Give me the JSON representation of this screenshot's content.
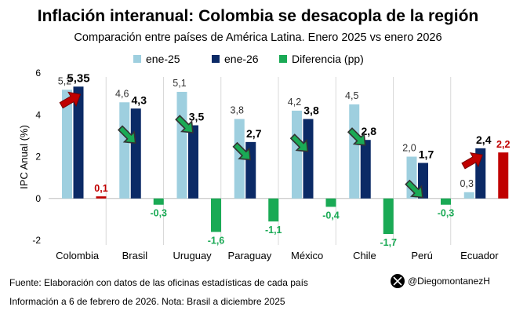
{
  "chart_data": {
    "type": "bar",
    "title": "Inflación interanual: Colombia se desacopla de la región",
    "subtitle": "Comparación entre países de América Latina. Enero 2025 vs enero 2026",
    "ylabel": "IPC Anual (%)",
    "xlabel": "",
    "ylim": [
      -2,
      6
    ],
    "yticks": [
      "-2",
      "0",
      "2",
      "4",
      "6"
    ],
    "ytick_values": [
      -2,
      0,
      2,
      4,
      6
    ],
    "categories": [
      "Colombia",
      "Brasil",
      "Uruguay",
      "Paraguay",
      "México",
      "Chile",
      "Perú",
      "Ecuador"
    ],
    "series": [
      {
        "name": "ene-25",
        "color": "#9ecfdf",
        "values": [
          5.2,
          4.6,
          5.1,
          3.8,
          4.2,
          4.5,
          2.0,
          0.3
        ],
        "labels": [
          "5,2",
          "4,6",
          "5,1",
          "3,8",
          "4,2",
          "4,5",
          "2,0",
          "0,3"
        ]
      },
      {
        "name": "ene-26",
        "color": "#0b2a66",
        "values": [
          5.35,
          4.3,
          3.5,
          2.7,
          3.8,
          2.8,
          1.7,
          2.4
        ],
        "labels": [
          "5,35",
          "4,3",
          "3,5",
          "2,7",
          "3,8",
          "2,8",
          "1,7",
          "2,4"
        ]
      },
      {
        "name": "Diferencia (pp)",
        "color": "#1aaa55",
        "values": [
          0.1,
          -0.3,
          -1.6,
          -1.1,
          -0.4,
          -1.7,
          -0.3,
          2.2
        ],
        "labels": [
          "0,1",
          "-0,3",
          "-1,6",
          "-1,1",
          "-0,4",
          "-1,7",
          "-0,3",
          "2,2"
        ]
      }
    ],
    "positive_diff_color": "#c00000",
    "negative_diff_color": "#1aaa55",
    "trend_arrows": [
      "up",
      "down",
      "down",
      "down",
      "down",
      "down",
      "down",
      "up"
    ],
    "up_arrow_color": "#c00000",
    "down_arrow_color": "#1aaa55",
    "grid": false,
    "legend_position": "top"
  },
  "footer": {
    "source": "Fuente: Elaboración con datos de las oficinas estadísticas de cada país",
    "note": "Información a 6 de febrero de 2026. Nota: Brasil a diciembre 2025",
    "handle": "@Diegomontanez",
    "handle_suffix": "H"
  },
  "icons": {
    "social": "x-logo-icon"
  }
}
